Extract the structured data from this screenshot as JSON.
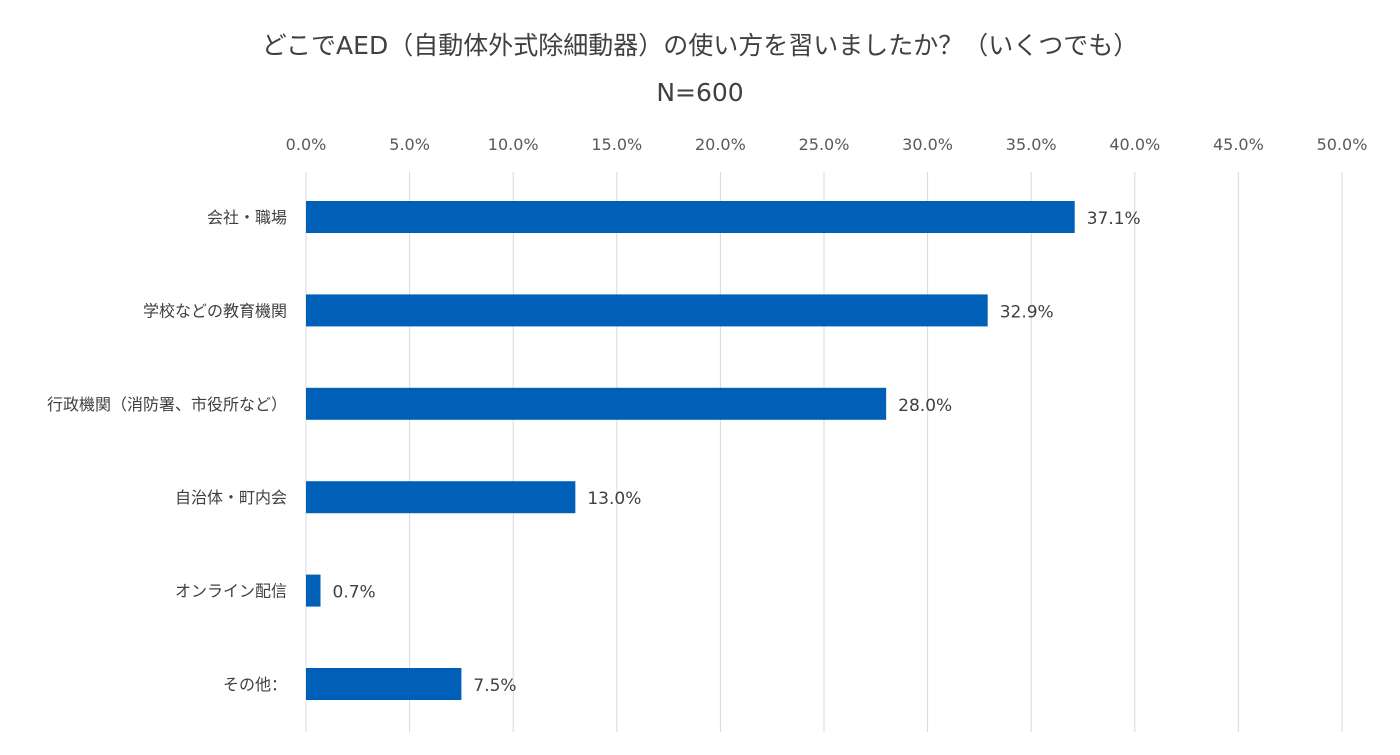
{
  "chart_data": {
    "type": "bar",
    "orientation": "horizontal",
    "title": "どこでAED（自動体外式除細動器）の使い方を習いましたか？（いくつでも）",
    "subtitle": "N=600",
    "categories": [
      "会社・職場",
      "学校などの教育機関",
      "行政機関（消防署、市役所など）",
      "自治体・町内会",
      "オンライン配信",
      "その他："
    ],
    "values": [
      37.1,
      32.9,
      28.0,
      13.0,
      0.7,
      7.5
    ],
    "data_labels": [
      "37.1%",
      "32.9%",
      "28.0%",
      "13.0%",
      "0.7%",
      "7.5%"
    ],
    "xlim": [
      0,
      50
    ],
    "x_ticks": [
      0,
      5,
      10,
      15,
      20,
      25,
      30,
      35,
      40,
      45,
      50
    ],
    "x_tick_labels": [
      "0.0%",
      "5.0%",
      "10.0%",
      "15.0%",
      "20.0%",
      "25.0%",
      "30.0%",
      "35.0%",
      "40.0%",
      "45.0%",
      "50.0%"
    ],
    "x_axis_position": "top",
    "grid": true,
    "legend": "none",
    "bar_color": "#0060B8",
    "grid_color": "#D9D9D9"
  }
}
